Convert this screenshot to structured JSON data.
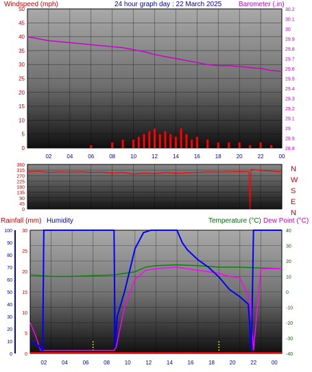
{
  "header": {
    "left_label": "Windspeed (mph)",
    "center_title": "24 hour graph day : 22 March 2025",
    "right_label": "Barometer (.in)"
  },
  "section3": {
    "rainfall_label": "Rainfall (mm)",
    "humidity_label": "Humidity",
    "temperature_label": "Temperature (°C)",
    "dewpoint_label": "Dew Point (°C)"
  },
  "colors": {
    "windspeed": "#ff0000",
    "barometer": "#cc00cc",
    "wind_dir": "#ff0000",
    "humidity": "#0000ff",
    "temperature": "#008800",
    "dewpoint": "#ff00ff",
    "rainfall": "#ff0000",
    "label_red": "#cc0000",
    "label_blue": "#0000aa",
    "label_green": "#006600",
    "label_magenta": "#cc00cc"
  },
  "chart_data": [
    {
      "type": "line",
      "name": "wind-barometer",
      "x_ticks": [
        "02",
        "04",
        "06",
        "08",
        "10",
        "12",
        "14",
        "16",
        "18",
        "20",
        "22",
        "00"
      ],
      "left_axis": {
        "label": "Windspeed (mph)",
        "ylim": [
          0,
          50
        ],
        "ticks": [
          0,
          5,
          10,
          15,
          20,
          25,
          30,
          35,
          40,
          45,
          50
        ]
      },
      "right_axis": {
        "label": "Barometer (.in)",
        "ylim": [
          28.8,
          30.2
        ],
        "ticks": [
          "28.8",
          "28.9",
          "29",
          "29.1",
          "29.2",
          "29.3",
          "29.4",
          "29.5",
          "29.6",
          "29.7",
          "29.8",
          "29.9",
          "30",
          "30.1",
          "30.2"
        ]
      },
      "series": [
        {
          "name": "Barometer (.in)",
          "axis": "right",
          "x": [
            0,
            1,
            2,
            3,
            4,
            5,
            6,
            7,
            8,
            9,
            10,
            11,
            12,
            13,
            14,
            15,
            16,
            17,
            18,
            19,
            20,
            21,
            22,
            23,
            24
          ],
          "values": [
            29.92,
            29.9,
            29.88,
            29.87,
            29.86,
            29.85,
            29.84,
            29.83,
            29.82,
            29.81,
            29.79,
            29.77,
            29.74,
            29.72,
            29.7,
            29.68,
            29.66,
            29.64,
            29.63,
            29.63,
            29.62,
            29.61,
            29.6,
            29.58,
            29.57
          ]
        },
        {
          "name": "Windspeed (mph)",
          "axis": "left",
          "style": "bars",
          "x": [
            6,
            8,
            9,
            10,
            10.5,
            11,
            11.5,
            12,
            12.5,
            13,
            13.5,
            14,
            14.5,
            15,
            15.5,
            16,
            17,
            18,
            19,
            20,
            21,
            22,
            23
          ],
          "values": [
            1,
            2,
            3,
            3,
            4,
            5,
            6,
            7,
            5,
            6,
            5,
            4,
            7,
            5,
            3,
            4,
            3,
            2,
            2,
            2,
            1,
            2,
            1
          ]
        }
      ]
    },
    {
      "type": "line",
      "name": "wind-direction",
      "x_ticks": [
        "02",
        "04",
        "06",
        "08",
        "10",
        "12",
        "14",
        "16",
        "18",
        "20",
        "22",
        "00"
      ],
      "left_axis": {
        "ylim": [
          0,
          360
        ],
        "ticks": [
          0,
          45,
          90,
          135,
          180,
          225,
          270,
          315,
          360
        ]
      },
      "right_labels": [
        "N",
        "W",
        "S",
        "E",
        "N"
      ],
      "series": [
        {
          "name": "Wind direction",
          "x": [
            0,
            1,
            2,
            3,
            4,
            5,
            6,
            7,
            8,
            9,
            10,
            11,
            12,
            13,
            14,
            15,
            16,
            17,
            18,
            19,
            20,
            20.9,
            21,
            21.1,
            22,
            23,
            24
          ],
          "values": [
            300,
            305,
            295,
            300,
            298,
            300,
            296,
            298,
            290,
            295,
            282,
            290,
            285,
            295,
            288,
            292,
            295,
            300,
            298,
            300,
            302,
            300,
            0,
            320,
            312,
            305,
            300
          ]
        }
      ]
    },
    {
      "type": "line",
      "name": "rain-humidity-temperature",
      "x_ticks": [
        "00",
        "02",
        "04",
        "06",
        "08",
        "10",
        "12",
        "14",
        "16",
        "18",
        "20",
        "22",
        "00"
      ],
      "left_outer_axis": {
        "label": "Rainfall (mm)",
        "ylim": [
          0,
          100
        ],
        "ticks": [
          0,
          10,
          20,
          30,
          40,
          50,
          60,
          70,
          80,
          90,
          100
        ]
      },
      "left_inner_axis": {
        "label": "Humidity",
        "ylim": [
          0,
          30
        ],
        "ticks": [
          0,
          5,
          10,
          15,
          20,
          25,
          30
        ]
      },
      "right_axis": {
        "label": "Temperature (°C)",
        "ylim": [
          -40,
          40
        ],
        "ticks": [
          -40,
          -30,
          -20,
          -10,
          0,
          10,
          20,
          30,
          40
        ]
      },
      "series": [
        {
          "name": "Humidity",
          "axis": "left_outer",
          "x": [
            0,
            0.9,
            1.2,
            1.3,
            8.0,
            8.1,
            8.3,
            9.0,
            10.0,
            10.8,
            11.5,
            14.0,
            14.5,
            15.0,
            16.0,
            17.0,
            18.0,
            19.0,
            20.0,
            20.8,
            21.1,
            21.3,
            24
          ],
          "values": [
            10,
            6,
            1,
            100,
            100,
            5,
            30,
            50,
            85,
            98,
            100,
            100,
            90,
            84,
            76,
            70,
            62,
            52,
            46,
            40,
            2,
            100,
            100
          ]
        },
        {
          "name": "Temperature (°C)",
          "axis": "right",
          "x": [
            0,
            2,
            4,
            6,
            8,
            10,
            11,
            12,
            14,
            16,
            18,
            20,
            22,
            24
          ],
          "values": [
            11,
            10,
            10,
            10.5,
            11,
            13,
            16,
            17,
            17.5,
            17,
            16,
            16,
            15.5,
            15
          ]
        },
        {
          "name": "Dew Point (°C)",
          "axis": "right",
          "x": [
            0,
            0.5,
            1.0,
            1.2,
            8.0,
            8.2,
            9.0,
            10.0,
            11.0,
            12.0,
            14.0,
            16.0,
            18.0,
            19.0,
            20.0,
            21.0,
            21.3,
            22,
            24
          ],
          "values": [
            -20,
            -28,
            -38,
            -38,
            -38,
            -36,
            -10,
            8,
            14,
            15,
            16,
            14,
            12,
            10,
            9,
            -5,
            -38,
            15,
            15
          ]
        },
        {
          "name": "Rainfall (mm)",
          "axis": "left_inner",
          "x": [
            0,
            24
          ],
          "values": [
            0,
            0
          ]
        }
      ]
    }
  ]
}
